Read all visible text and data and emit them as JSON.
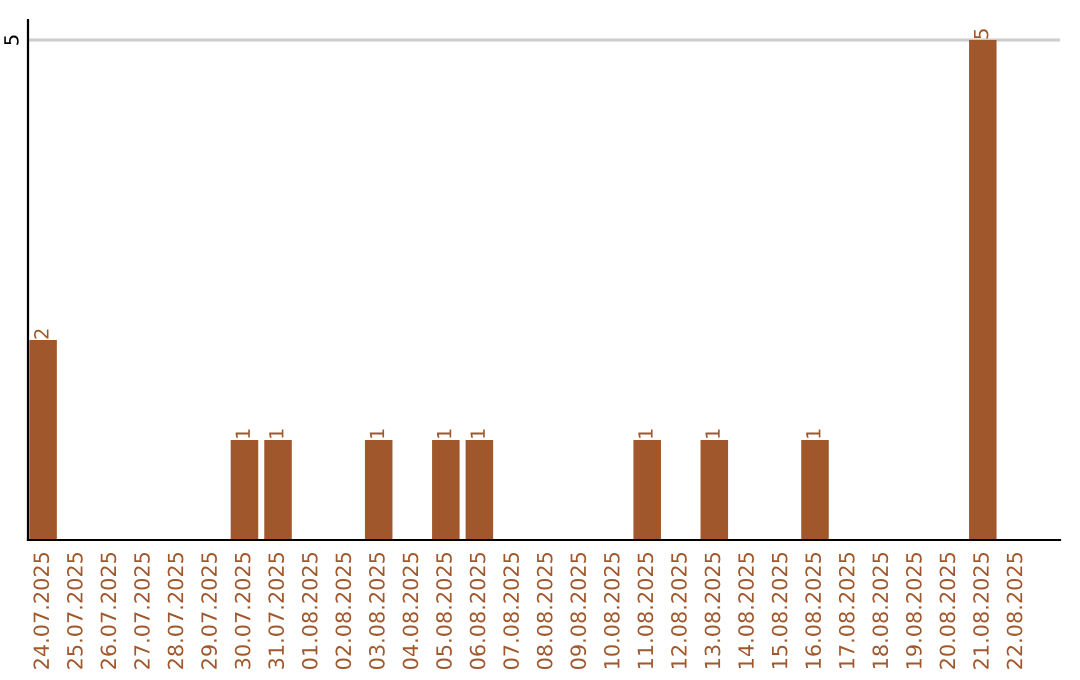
{
  "chart_data": {
    "type": "bar",
    "categories": [
      "24.07.2025",
      "25.07.2025",
      "26.07.2025",
      "27.07.2025",
      "28.07.2025",
      "29.07.2025",
      "30.07.2025",
      "31.07.2025",
      "01.08.2025",
      "02.08.2025",
      "03.08.2025",
      "04.08.2025",
      "05.08.2025",
      "06.08.2025",
      "07.08.2025",
      "08.08.2025",
      "09.08.2025",
      "10.08.2025",
      "11.08.2025",
      "12.08.2025",
      "13.08.2025",
      "14.08.2025",
      "15.08.2025",
      "16.08.2025",
      "17.08.2025",
      "18.08.2025",
      "19.08.2025",
      "20.08.2025",
      "21.08.2025",
      "22.08.2025"
    ],
    "values": [
      2,
      0,
      0,
      0,
      0,
      0,
      1,
      1,
      0,
      0,
      1,
      0,
      1,
      1,
      0,
      0,
      0,
      0,
      1,
      0,
      1,
      0,
      0,
      1,
      0,
      0,
      0,
      0,
      5,
      0
    ],
    "value_labels": [
      "2",
      null,
      null,
      null,
      null,
      null,
      "1",
      "1",
      null,
      null,
      "1",
      null,
      "1",
      "1",
      null,
      null,
      null,
      null,
      "1",
      null,
      "1",
      null,
      null,
      "1",
      null,
      null,
      null,
      null,
      "5",
      null
    ],
    "color": "#a0572b",
    "ylim": [
      0,
      5.2
    ],
    "yticks": [
      5
    ],
    "grid": "y",
    "legend": false
  }
}
